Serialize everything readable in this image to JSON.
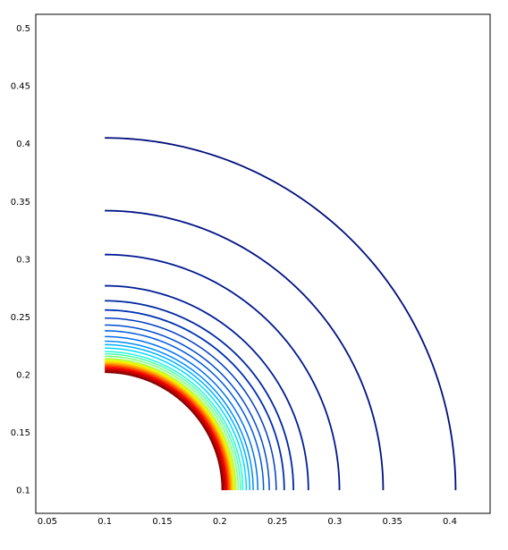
{
  "chart_data": {
    "type": "line",
    "subtype": "contour",
    "title": "",
    "xlabel": "",
    "ylabel": "",
    "xlim": [
      0.04,
      0.435
    ],
    "ylim": [
      0.08,
      0.512
    ],
    "grid": false,
    "legend": "none",
    "x_ticks": [
      "0.05",
      "0.1",
      "0.15",
      "0.2",
      "0.25",
      "0.3",
      "0.35",
      "0.4"
    ],
    "y_ticks": [
      "0.1",
      "0.15",
      "0.2",
      "0.25",
      "0.3",
      "0.35",
      "0.4",
      "0.45",
      "0.5"
    ],
    "center": [
      0.1,
      0.1
    ],
    "contour_radii": [
      0.102,
      0.103,
      0.104,
      0.105,
      0.106,
      0.107,
      0.108,
      0.109,
      0.11,
      0.111,
      0.112,
      0.113,
      0.114,
      0.116,
      0.118,
      0.12,
      0.123,
      0.126,
      0.129,
      0.133,
      0.138,
      0.143,
      0.149,
      0.156,
      0.164,
      0.177,
      0.204,
      0.242,
      0.305
    ],
    "contour_colors": [
      "#7f0000",
      "#9b0000",
      "#b80000",
      "#d40000",
      "#f00000",
      "#ff2400",
      "#ff5000",
      "#ff7c00",
      "#ffa800",
      "#ffd000",
      "#f8ef00",
      "#d6ff18",
      "#aaff4c",
      "#7cff7a",
      "#4cffaa",
      "#1ff8dc",
      "#00d8ff",
      "#00b2ff",
      "#008cff",
      "#0070f0",
      "#005ae0",
      "#004ad0",
      "#003cc0",
      "#0030b0",
      "#0028a0",
      "#001e96",
      "#00188e",
      "#001284",
      "#000f7c"
    ]
  }
}
